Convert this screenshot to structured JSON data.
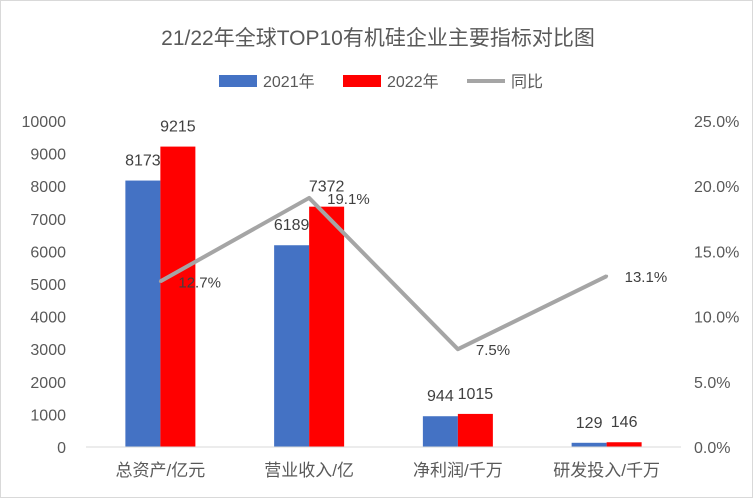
{
  "chart_data": {
    "type": "bar",
    "title": "21/22年全球TOP10有机硅企业主要指标对比图",
    "categories": [
      "总资产/亿元",
      "营业收入/亿",
      "净利润/千万",
      "研发投入/千万"
    ],
    "series": [
      {
        "name": "2021年",
        "kind": "bar",
        "axis": "left",
        "color": "#4472c4",
        "values": [
          8173,
          6189,
          944,
          129
        ],
        "labels": [
          "8173",
          "6189",
          "944",
          "129"
        ]
      },
      {
        "name": "2022年",
        "kind": "bar",
        "axis": "left",
        "color": "#ff0000",
        "values": [
          9215,
          7372,
          1015,
          146
        ],
        "labels": [
          "9215",
          "7372",
          "1015",
          "146"
        ]
      },
      {
        "name": "同比",
        "kind": "line",
        "axis": "right",
        "color": "#a5a5a5",
        "values": [
          12.7,
          19.1,
          7.5,
          13.1
        ],
        "labels": [
          "12.7%",
          "19.1%",
          "7.5%",
          "13.1%"
        ]
      }
    ],
    "y_left": {
      "range": [
        0,
        10000
      ],
      "ticks": [
        "0",
        "1000",
        "2000",
        "3000",
        "4000",
        "5000",
        "6000",
        "7000",
        "8000",
        "9000",
        "10000"
      ]
    },
    "y_right": {
      "range": [
        0,
        25
      ],
      "unit": "percent",
      "ticks": [
        "0.0%",
        "5.0%",
        "10.0%",
        "15.0%",
        "20.0%",
        "25.0%"
      ]
    },
    "grid": false,
    "legend_position": "top"
  }
}
